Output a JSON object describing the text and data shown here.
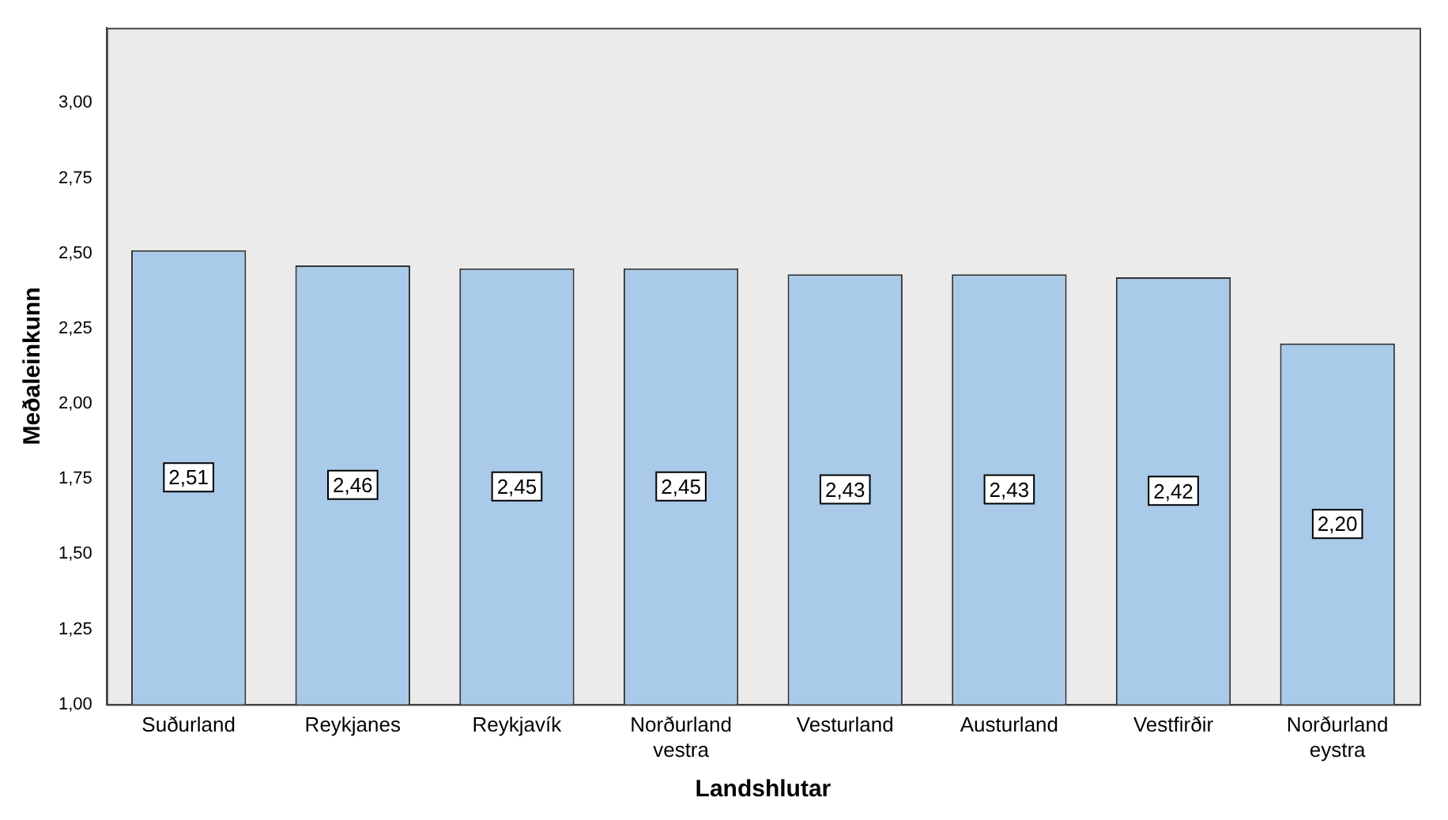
{
  "chart_data": {
    "type": "bar",
    "xlabel": "Landshlutar",
    "ylabel": "Meðaleinkunn",
    "categories": [
      "Suðurland",
      "Reykjanes",
      "Reykjavík",
      "Norðurland vestra",
      "Vesturland",
      "Austurland",
      "Vestfirðir",
      "Norðurland eystra"
    ],
    "values": [
      2.51,
      2.46,
      2.45,
      2.45,
      2.43,
      2.43,
      2.42,
      2.2
    ],
    "value_labels": [
      "2,51",
      "2,46",
      "2,45",
      "2,45",
      "2,43",
      "2,43",
      "2,42",
      "2,20"
    ],
    "color": "#a9cbe9",
    "ylim": [
      1,
      3.25
    ],
    "yticks": [
      {
        "value": 1,
        "label": "1,00"
      },
      {
        "value": 1.25,
        "label": "1,25"
      },
      {
        "value": 1.5,
        "label": "1,50"
      },
      {
        "value": 1.75,
        "label": "1,75"
      },
      {
        "value": 2,
        "label": "2,00"
      },
      {
        "value": 2.25,
        "label": "2,25"
      },
      {
        "value": 2.5,
        "label": "2,50"
      },
      {
        "value": 2.75,
        "label": "2,75"
      },
      {
        "value": 3,
        "label": "3,00"
      }
    ],
    "grid": false,
    "legend": false
  }
}
